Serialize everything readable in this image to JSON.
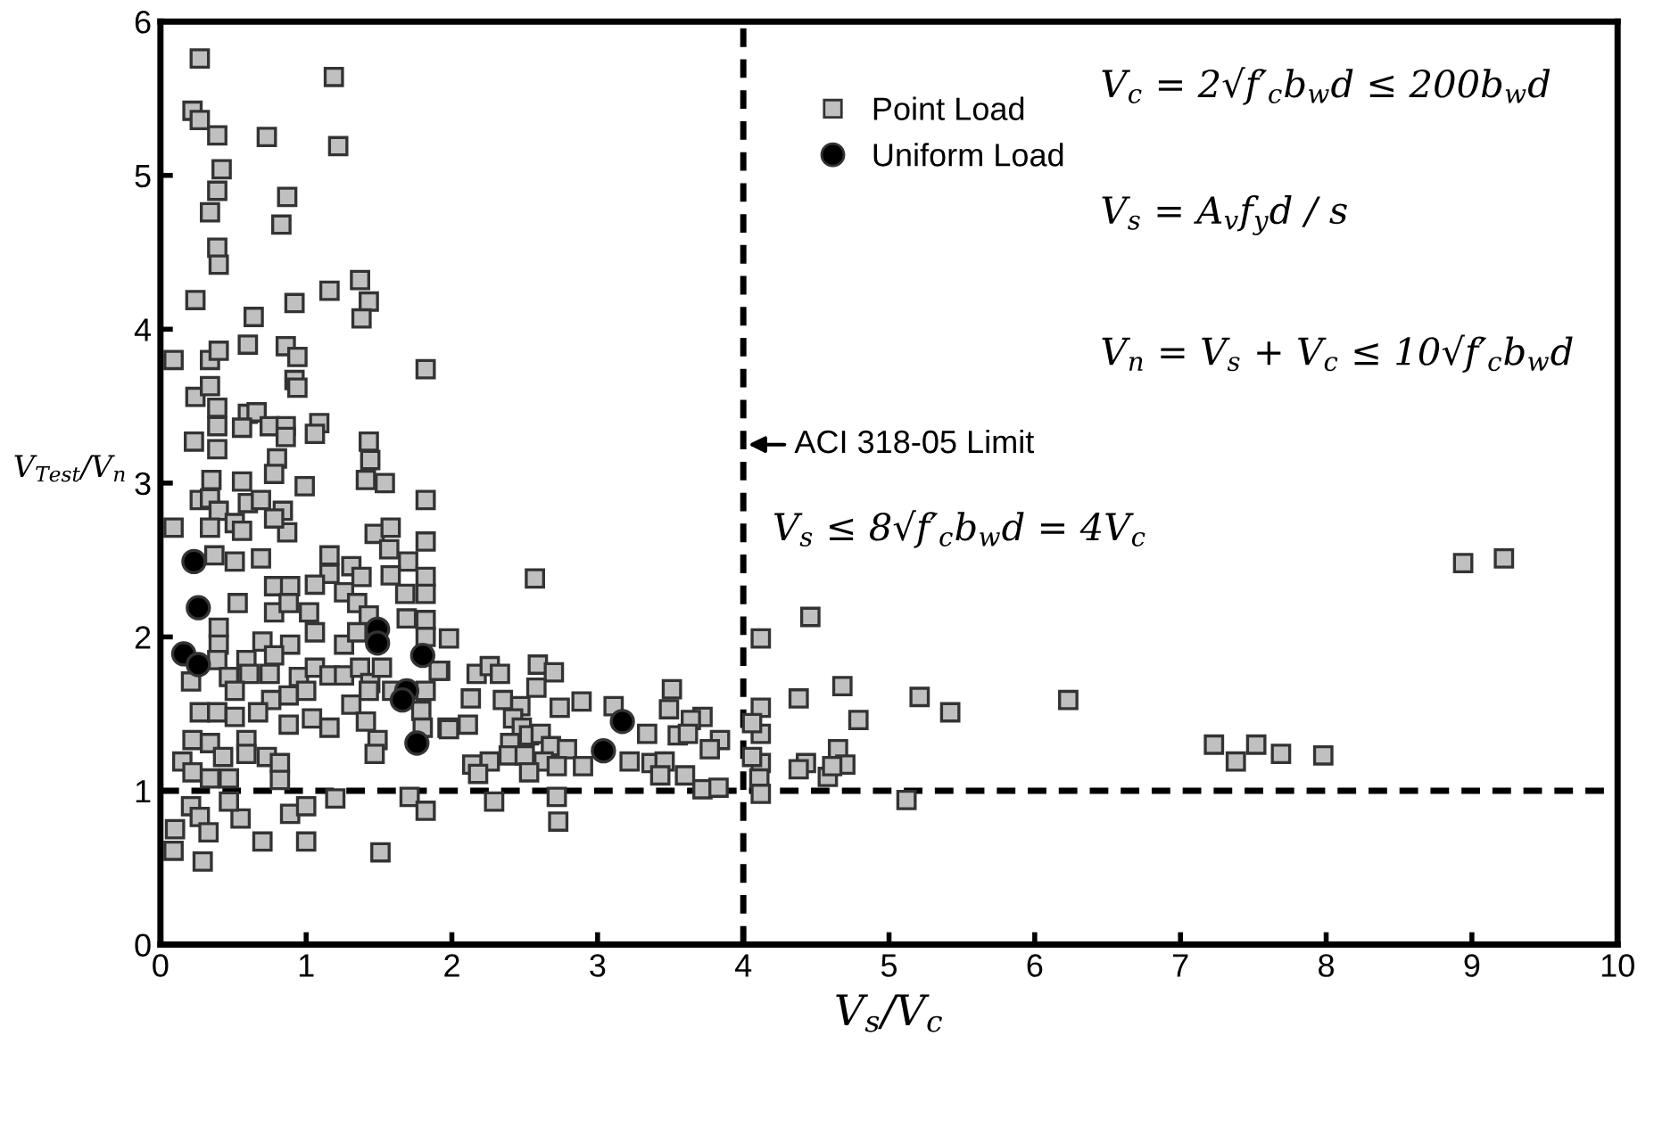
{
  "chart_data": {
    "type": "scatter",
    "xlabel": "V$_{s}$/V$_{c}$",
    "ylabel": "V$_{Test}$/V$_{n}$",
    "xlim": [
      0,
      10
    ],
    "ylim": [
      0,
      6
    ],
    "xticks": [
      0,
      1,
      2,
      3,
      4,
      5,
      6,
      7,
      8,
      9,
      10
    ],
    "yticks": [
      0,
      1,
      2,
      3,
      4,
      5,
      6
    ],
    "grid": false,
    "legend": "top",
    "series": [
      {
        "name": "Point Load",
        "color": "#c0c0c0",
        "marker": "square",
        "x": [
          0.27,
          1.19,
          0.22,
          0.27,
          0.39,
          0.73,
          1.22,
          0.42,
          0.39,
          0.34,
          0.87,
          0.83,
          0.39,
          0.4,
          0.24,
          1.16,
          1.37,
          0.92,
          1.43,
          1.38,
          0.64,
          1.82,
          0.09,
          0.34,
          0.4,
          0.6,
          0.86,
          0.94,
          0.92,
          0.94,
          0.24,
          0.34,
          0.39,
          0.6,
          0.66,
          0.56,
          0.75,
          0.86,
          1.09,
          1.06,
          0.39,
          0.23,
          0.39,
          0.86,
          1.43,
          1.44,
          1.41,
          1.54,
          0.8,
          0.78,
          0.35,
          0.56,
          0.99,
          1.82,
          0.27,
          0.34,
          0.6,
          0.69,
          0.84,
          0.4,
          0.09,
          0.34,
          0.51,
          0.56,
          0.87,
          0.78,
          1.47,
          1.58,
          1.82,
          1.57,
          1.7,
          0.69,
          0.51,
          1.16,
          1.31,
          0.37,
          1.16,
          1.38,
          1.58,
          1.82,
          1.82,
          0.78,
          0.89,
          1.06,
          0.53,
          0.78,
          0.88,
          1.02,
          1.26,
          1.35,
          1.43,
          1.69,
          1.82,
          1.68,
          0.4,
          0.4,
          0.7,
          0.89,
          1.06,
          1.26,
          1.35,
          1.82,
          1.98,
          0.39,
          0.59,
          0.78,
          0.21,
          0.47,
          0.61,
          0.75,
          0.95,
          1.06,
          1.16,
          1.26,
          1.37,
          1.44,
          1.52,
          1.92,
          1.82,
          1.59,
          0.51,
          0.76,
          0.88,
          1.0,
          1.31,
          1.43,
          0.27,
          0.39,
          0.51,
          0.67,
          0.88,
          1.04,
          1.16,
          1.41,
          1.49,
          1.79,
          1.8,
          1.97,
          1.47,
          0.15,
          0.22,
          0.34,
          0.43,
          0.59,
          0.59,
          0.73,
          0.82,
          0.22,
          0.34,
          0.47,
          0.82,
          0.21,
          0.27,
          0.33,
          0.1,
          0.09,
          0.29,
          0.55,
          0.7,
          1.0,
          0.89,
          1.0,
          1.2,
          1.51,
          1.71,
          1.82,
          0.47,
          2.57,
          1.91,
          2.17,
          2.26,
          2.33,
          2.59,
          2.7,
          2.13,
          2.35,
          2.47,
          2.58,
          2.74,
          2.89,
          3.11,
          3.51,
          3.49,
          3.72,
          3.64,
          1.98,
          2.11,
          2.42,
          2.48,
          2.53,
          2.61,
          2.4,
          2.68,
          2.79,
          3.34,
          3.55,
          3.62,
          3.84,
          3.77,
          2.14,
          2.26,
          2.39,
          2.5,
          2.63,
          2.72,
          2.9,
          3.22,
          3.37,
          3.46,
          2.18,
          2.53,
          3.43,
          3.6,
          3.72,
          3.83,
          2.29,
          2.72,
          2.73,
          4.12,
          4.12,
          4.12,
          4.06,
          4.12,
          4.06,
          4.11,
          4.12,
          4.46,
          4.68,
          4.38,
          5.21,
          5.42,
          6.23,
          4.79,
          4.65,
          4.43,
          4.38,
          4.7,
          4.58,
          4.61,
          5.12,
          7.23,
          7.38,
          7.52,
          7.69,
          7.98,
          8.94,
          9.22
        ],
        "values": [
          5.76,
          5.64,
          5.42,
          5.36,
          5.26,
          5.25,
          5.19,
          5.04,
          4.9,
          4.76,
          4.86,
          4.68,
          4.53,
          4.42,
          4.19,
          4.25,
          4.32,
          4.17,
          4.18,
          4.07,
          4.08,
          3.74,
          3.8,
          3.8,
          3.86,
          3.9,
          3.89,
          3.82,
          3.67,
          3.62,
          3.56,
          3.63,
          3.49,
          3.45,
          3.46,
          3.36,
          3.37,
          3.37,
          3.39,
          3.32,
          3.37,
          3.27,
          3.22,
          3.3,
          3.27,
          3.15,
          3.02,
          3.0,
          3.16,
          3.06,
          3.02,
          3.01,
          2.98,
          2.89,
          2.89,
          2.9,
          2.87,
          2.89,
          2.82,
          2.82,
          2.71,
          2.71,
          2.74,
          2.69,
          2.68,
          2.77,
          2.67,
          2.71,
          2.62,
          2.57,
          2.49,
          2.51,
          2.49,
          2.53,
          2.46,
          2.53,
          2.41,
          2.39,
          2.4,
          2.39,
          2.28,
          2.33,
          2.33,
          2.34,
          2.22,
          2.16,
          2.22,
          2.16,
          2.29,
          2.22,
          2.14,
          2.12,
          2.11,
          2.28,
          2.06,
          1.95,
          1.97,
          1.95,
          2.03,
          1.95,
          2.03,
          2.0,
          1.99,
          1.85,
          1.85,
          1.88,
          1.71,
          1.74,
          1.76,
          1.76,
          1.74,
          1.8,
          1.75,
          1.75,
          1.8,
          1.7,
          1.8,
          1.78,
          1.65,
          1.65,
          1.65,
          1.59,
          1.62,
          1.65,
          1.56,
          1.65,
          1.51,
          1.51,
          1.48,
          1.51,
          1.43,
          1.47,
          1.41,
          1.45,
          1.33,
          1.52,
          1.41,
          1.41,
          1.24,
          1.19,
          1.33,
          1.31,
          1.22,
          1.33,
          1.24,
          1.22,
          1.18,
          1.12,
          1.08,
          1.08,
          1.07,
          0.9,
          0.83,
          0.73,
          0.75,
          0.61,
          0.54,
          0.82,
          0.67,
          0.67,
          0.85,
          0.9,
          0.95,
          0.6,
          0.96,
          0.87,
          0.93,
          2.38,
          1.78,
          1.76,
          1.81,
          1.76,
          1.82,
          1.77,
          1.6,
          1.59,
          1.55,
          1.67,
          1.54,
          1.58,
          1.55,
          1.66,
          1.53,
          1.48,
          1.46,
          1.4,
          1.43,
          1.47,
          1.41,
          1.36,
          1.37,
          1.31,
          1.29,
          1.27,
          1.37,
          1.36,
          1.37,
          1.33,
          1.27,
          1.17,
          1.19,
          1.23,
          1.23,
          1.19,
          1.16,
          1.16,
          1.19,
          1.18,
          1.19,
          1.11,
          1.12,
          1.1,
          1.1,
          1.01,
          1.02,
          0.93,
          0.96,
          0.8,
          1.99,
          1.54,
          1.37,
          1.44,
          1.18,
          1.22,
          1.08,
          0.98,
          2.13,
          1.68,
          1.6,
          1.61,
          1.51,
          1.59,
          1.46,
          1.27,
          1.18,
          1.14,
          1.17,
          1.09,
          1.16,
          0.94,
          1.3,
          1.19,
          1.3,
          1.24,
          1.23,
          2.48,
          2.51
        ]
      },
      {
        "name": "Uniform Load",
        "color": "#000000",
        "marker": "circle",
        "x": [
          0.23,
          0.26,
          0.16,
          0.26,
          1.49,
          1.49,
          1.8,
          1.69,
          1.66,
          1.76,
          3.17,
          3.04
        ],
        "values": [
          2.49,
          2.19,
          1.89,
          1.82,
          2.05,
          1.96,
          1.88,
          1.65,
          1.59,
          1.31,
          1.45,
          1.26
        ]
      }
    ],
    "ref_lines": [
      {
        "axis": "x",
        "value": 4,
        "color": "#000000",
        "line_style": "dashed"
      },
      {
        "axis": "y",
        "value": 1,
        "color": "#000000",
        "line_style": "dashed"
      }
    ],
    "annotations": [
      {
        "text": "ACI 318-05 Limit",
        "x": 4,
        "y": 3.25
      },
      "V$_{c}$ = 2√f′$_{c}$b$_{w}$d ≤ 200b$_{w}$d",
      "V$_{s}$ = A$_{v}$f$_{y}$d / s",
      "V$_{n}$ = V$_{s}$ + V$_{c}$ ≤ 10√f′$_{c}$b$_{w}$d",
      "V$_{s}$ ≤ 8√f′$_{c}$b$_{w}$d = 4V$_{c}$"
    ]
  }
}
